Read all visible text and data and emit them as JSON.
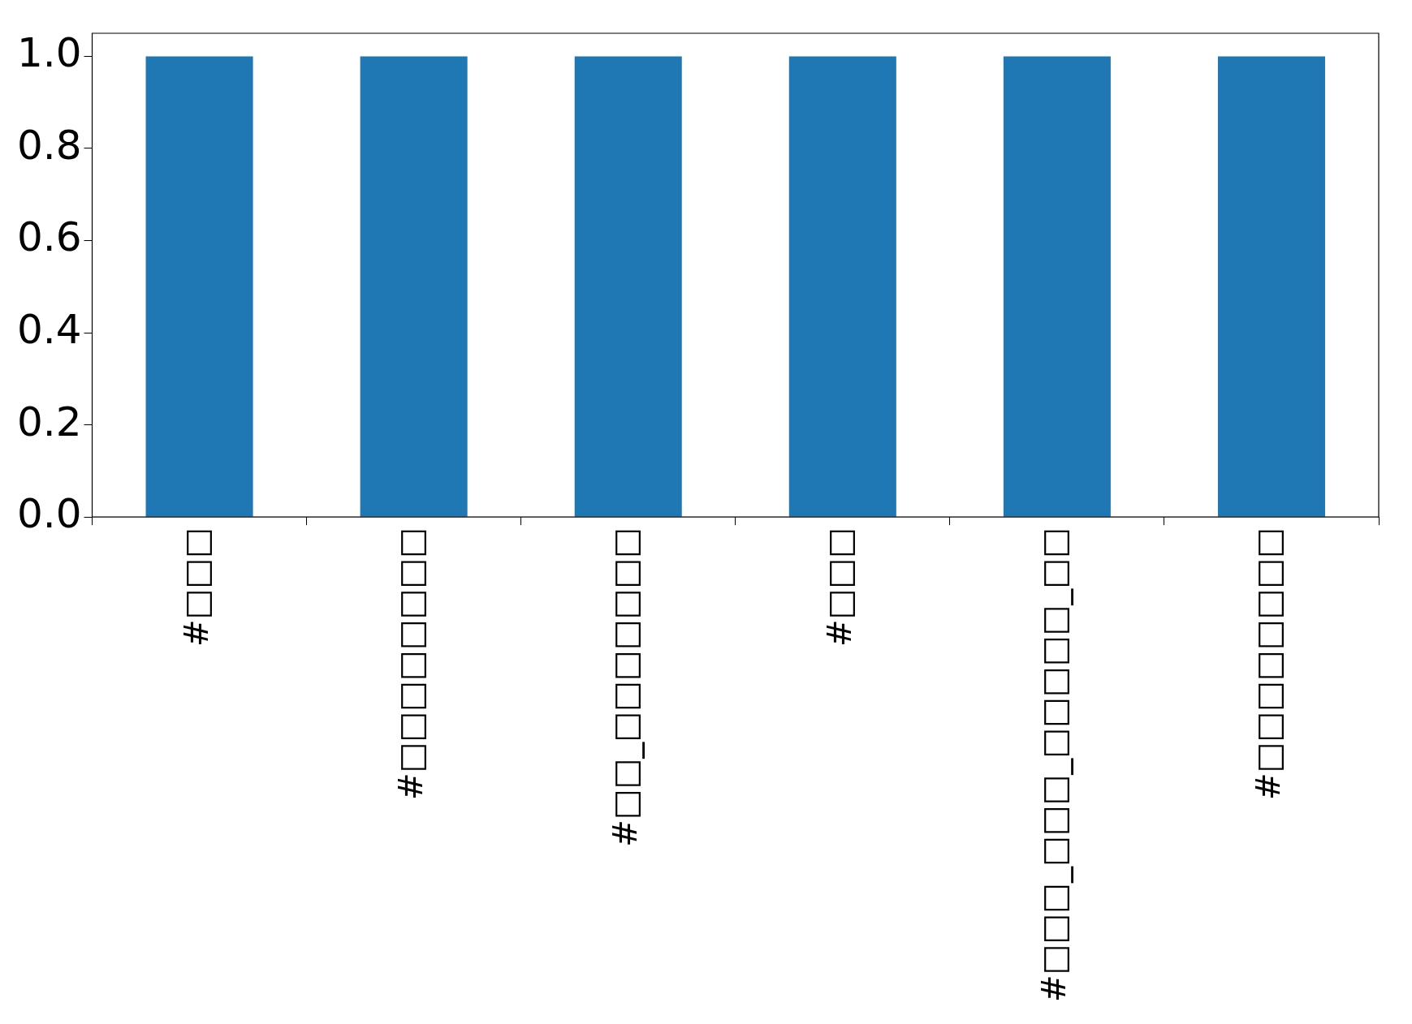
{
  "chart_data": {
    "type": "bar",
    "categories": [
      "#□□□",
      "#□□□□□□□□",
      "#□□_□□□□□□□",
      "#□□□",
      "#□□□_□□□_□□□□□_□□",
      "#□□□□□□□□"
    ],
    "values": [
      1,
      1,
      1,
      1,
      1,
      1
    ],
    "color": "#1f77b4",
    "ylim": [
      0,
      1.05
    ],
    "yticks": [
      {
        "value": 0,
        "label": "0.0"
      },
      {
        "value": 0.2,
        "label": "0.2"
      },
      {
        "value": 0.4,
        "label": "0.4"
      },
      {
        "value": 0.6,
        "label": "0.6"
      },
      {
        "value": 0.8,
        "label": "0.8"
      },
      {
        "value": 1,
        "label": "1.0"
      }
    ]
  }
}
